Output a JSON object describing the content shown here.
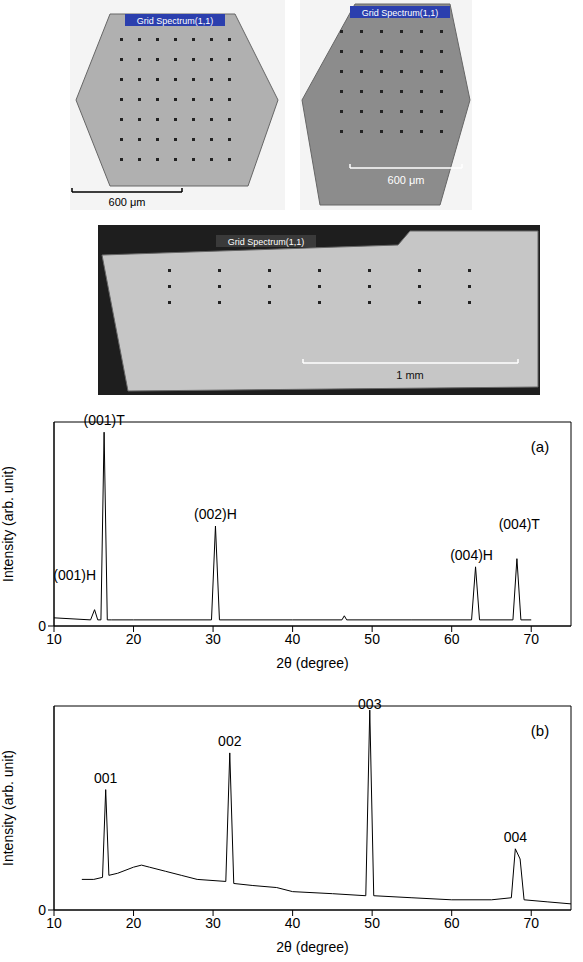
{
  "images": [
    {
      "label": "Grid Spectrum(1,1)",
      "scale_bar": "600 μm"
    },
    {
      "label": "Grid Spectrum(1,1)",
      "scale_bar": "600 μm"
    },
    {
      "label": "Grid Spectrum(1,1)",
      "scale_bar": "1 mm"
    }
  ],
  "chart_data": [
    {
      "type": "line",
      "panel_label": "(a)",
      "x_label": "2θ (degree)",
      "y_label": "Intensity (arb. unit)",
      "xlim": [
        10,
        75
      ],
      "xticks": [
        10,
        20,
        30,
        40,
        50,
        60,
        70
      ],
      "ylim": [
        0,
        100
      ],
      "yticks": [
        0
      ],
      "color": "#000000",
      "x": [
        10,
        14.6,
        15.1,
        15.5,
        15.9,
        16.3,
        16.7,
        17.2,
        20,
        29.8,
        30.3,
        30.8,
        40,
        46.2,
        46.5,
        46.8,
        55,
        62.5,
        63.0,
        63.5,
        67.7,
        68.2,
        68.7,
        70
      ],
      "values": [
        4,
        3,
        8,
        3,
        3,
        95,
        3,
        3,
        3,
        3,
        49,
        3,
        3,
        3,
        5,
        3,
        3,
        3,
        29,
        3,
        3,
        33,
        3,
        3
      ],
      "annotations": [
        {
          "text": "(001)H",
          "x": 12.6,
          "y": 20
        },
        {
          "text": "(001)T",
          "x": 16.3,
          "y": 96
        },
        {
          "text": "(002)H",
          "x": 30.3,
          "y": 50
        },
        {
          "text": "(004)H",
          "x": 62.5,
          "y": 30
        },
        {
          "text": "(004)T",
          "x": 68.5,
          "y": 45
        }
      ]
    },
    {
      "type": "line",
      "panel_label": "(b)",
      "x_label": "2θ (degree)",
      "y_label": "Intensity (arb. unit)",
      "xlim": [
        10,
        75
      ],
      "xticks": [
        10,
        20,
        30,
        40,
        50,
        60,
        70
      ],
      "ylim": [
        0,
        100
      ],
      "yticks": [
        0
      ],
      "color": "#000000",
      "x": [
        13.5,
        15,
        16.1,
        16.5,
        16.9,
        18,
        20,
        21,
        22,
        24,
        26,
        28,
        31.6,
        32.1,
        32.6,
        35,
        38,
        40,
        45,
        49.2,
        49.7,
        50.2,
        55,
        60,
        65,
        67.5,
        68.0,
        68.6,
        69.1,
        72,
        75
      ],
      "values": [
        15,
        15,
        16,
        59,
        17,
        18,
        21,
        22,
        21,
        19,
        17,
        15,
        14,
        77,
        13,
        12,
        11,
        9,
        8,
        7,
        98,
        7,
        6,
        5,
        5,
        6,
        30,
        25,
        5,
        4,
        3
      ],
      "annotations": [
        {
          "text": "001",
          "x": 16.5,
          "y": 60
        },
        {
          "text": "002",
          "x": 32.1,
          "y": 78
        },
        {
          "text": "003",
          "x": 49.7,
          "y": 96
        },
        {
          "text": "004",
          "x": 68.0,
          "y": 31
        }
      ]
    }
  ]
}
